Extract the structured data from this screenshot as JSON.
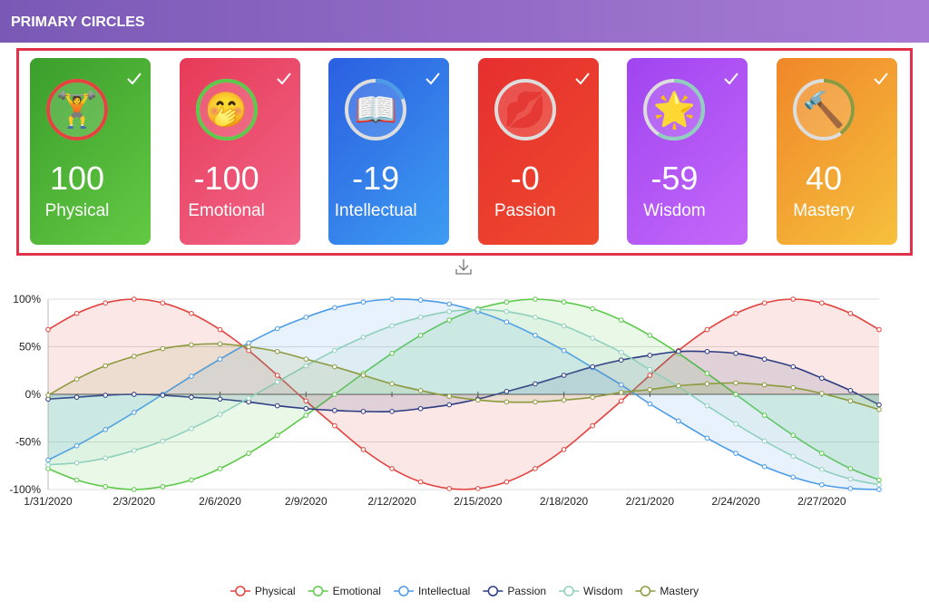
{
  "header": {
    "title": "PRIMARY CIRCLES"
  },
  "cards": [
    {
      "icon": "🏋️",
      "value": "100",
      "label": "Physical"
    },
    {
      "icon": "🤭",
      "value": "-100",
      "label": "Emotional"
    },
    {
      "icon": "📖",
      "value": "-19",
      "label": "Intellectual"
    },
    {
      "icon": "💋",
      "value": "-0",
      "label": "Passion"
    },
    {
      "icon": "🌟",
      "value": "-59",
      "label": "Wisdom"
    },
    {
      "icon": "🔨",
      "value": "40",
      "label": "Mastery"
    }
  ],
  "chart_data": {
    "type": "line",
    "x": [
      "1/31/2020",
      null,
      null,
      "2/3/2020",
      null,
      null,
      "2/6/2020",
      null,
      null,
      "2/9/2020",
      null,
      null,
      "2/12/2020",
      null,
      null,
      "2/15/2020",
      null,
      null,
      "2/18/2020",
      null,
      null,
      "2/21/2020",
      null,
      null,
      "2/24/2020",
      null,
      null,
      "2/27/2020",
      null,
      null
    ],
    "series": [
      {
        "name": "Physical",
        "color": "#e2433e",
        "values": [
          68,
          85,
          96,
          100,
          96,
          85,
          68,
          46,
          20,
          -7,
          -33,
          -58,
          -78,
          -92,
          -99,
          -99,
          -92,
          -78,
          -58,
          -33,
          -7,
          20,
          46,
          68,
          85,
          96,
          100,
          96,
          85,
          68
        ]
      },
      {
        "name": "Emotional",
        "color": "#5cc94a",
        "values": [
          -78,
          -90,
          -97,
          -100,
          -97,
          -90,
          -78,
          -62,
          -43,
          -22,
          0,
          22,
          43,
          62,
          78,
          90,
          97,
          100,
          97,
          90,
          78,
          62,
          43,
          22,
          0,
          -22,
          -43,
          -62,
          -78,
          -90
        ]
      },
      {
        "name": "Intellectual",
        "color": "#4a9be8",
        "values": [
          -69,
          -54,
          -37,
          -19,
          0,
          19,
          37,
          54,
          69,
          81,
          91,
          97,
          100,
          99,
          95,
          87,
          76,
          62,
          46,
          28,
          10,
          -10,
          -28,
          -46,
          -62,
          -76,
          -87,
          -95,
          -99,
          -100
        ]
      },
      {
        "name": "Passion",
        "color": "#2c3a82",
        "values": [
          -5,
          -3,
          -1,
          0,
          -1,
          -3,
          -5,
          -8,
          -12,
          -15,
          -17,
          -18,
          -18,
          -15,
          -11,
          -5,
          3,
          11,
          20,
          29,
          36,
          41,
          45,
          45,
          43,
          37,
          29,
          17,
          4,
          -11
        ]
      },
      {
        "name": "Wisdom",
        "color": "#8fd0bd",
        "values": [
          -74,
          -72,
          -67,
          -59,
          -49,
          -36,
          -21,
          -4,
          13,
          30,
          46,
          60,
          72,
          81,
          87,
          89,
          87,
          81,
          72,
          59,
          44,
          26,
          8,
          -12,
          -31,
          -49,
          -65,
          -79,
          -89,
          -95
        ]
      },
      {
        "name": "Mastery",
        "color": "#8d9a3e",
        "values": [
          -1,
          16,
          30,
          40,
          48,
          52,
          53,
          50,
          45,
          37,
          29,
          20,
          11,
          4,
          -2,
          -6,
          -8,
          -8,
          -6,
          -3,
          2,
          5,
          9,
          11,
          12,
          10,
          7,
          1,
          -7,
          -16
        ]
      }
    ],
    "ylim": [
      -100,
      100
    ],
    "yticks": [
      {
        "value": 100,
        "label": "100%"
      },
      {
        "value": 50,
        "label": "50%"
      },
      {
        "value": 0,
        "label": "0%"
      },
      {
        "value": -50,
        "label": "-50%"
      },
      {
        "value": -100,
        "label": "-100%"
      }
    ],
    "grid": true,
    "legend": "bottom"
  }
}
